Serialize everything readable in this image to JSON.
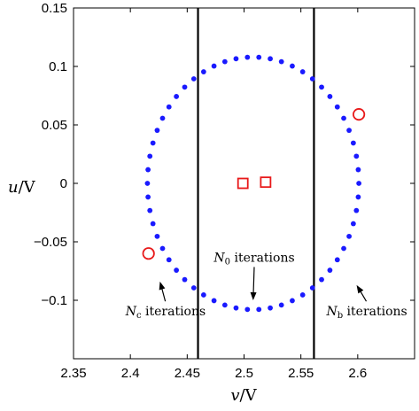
{
  "chart_data": {
    "type": "scatter",
    "xlim": [
      2.35,
      2.65
    ],
    "ylim": [
      -0.15,
      0.15
    ],
    "xticks": [
      2.35,
      2.4,
      2.45,
      2.5,
      2.55,
      2.6
    ],
    "xtick_labels": [
      "2.35",
      "2.4",
      "2.45",
      "2.5",
      "2.55",
      "2.6"
    ],
    "yticks": [
      0.15,
      0.1,
      0.05,
      0,
      -0.05,
      -0.1
    ],
    "ytick_labels": [
      "0.15",
      "0.1",
      "0.05",
      "0",
      "−0.05",
      "−0.1"
    ],
    "xlabel": "v/V",
    "ylabel": "u/V",
    "grid": false,
    "orbit": {
      "color": "#1a1aff",
      "center": [
        2.508,
        0
      ],
      "radius_x": 0.093,
      "radius_y": 0.108,
      "point_count": 58
    },
    "vertical_lines": [
      2.4595,
      2.5615
    ],
    "circled_points": [
      {
        "x": 2.416,
        "y": -0.06,
        "color": "#e8191a"
      },
      {
        "x": 2.601,
        "y": 0.059,
        "color": "#e8191a"
      }
    ],
    "square_points": [
      {
        "x": 2.499,
        "y": 0.0,
        "color": "#e8191a"
      },
      {
        "x": 2.519,
        "y": 0.001,
        "color": "#e8191a"
      }
    ],
    "annotations": [
      {
        "id": "n0",
        "text": "N0 iterations",
        "italic_part": "N",
        "sub": "0",
        "rest": " iterations",
        "text_at": [
          2.509,
          -0.067
        ],
        "arrow_to": [
          2.508,
          -0.1
        ]
      },
      {
        "id": "nc",
        "text": "Nc iterations",
        "italic_part": "N",
        "sub": "c",
        "rest": " iterations",
        "text_at": [
          2.431,
          -0.113
        ],
        "arrow_to": [
          2.426,
          -0.084
        ]
      },
      {
        "id": "nb",
        "text": "Nb iterations",
        "italic_part": "N",
        "sub": "b",
        "rest": " iterations",
        "text_at": [
          2.608,
          -0.113
        ],
        "arrow_to": [
          2.599,
          -0.087
        ]
      }
    ]
  }
}
